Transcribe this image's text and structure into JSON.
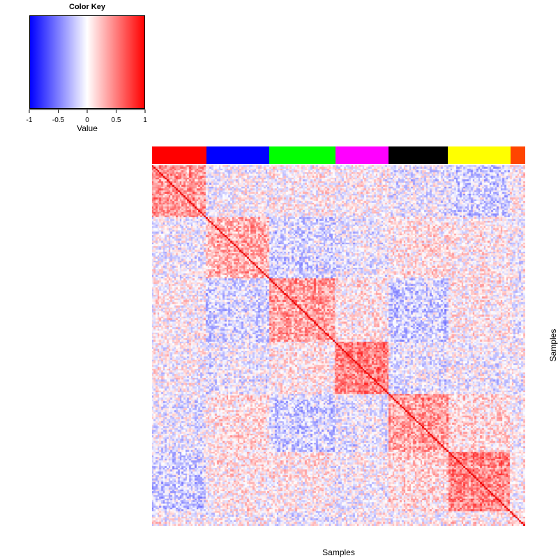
{
  "color_key": {
    "title": "Color Key",
    "xlabel": "Value",
    "ticks": [
      "-1",
      "-0.5",
      "0",
      "0.5",
      "1"
    ],
    "range": [
      -1,
      1
    ],
    "colors": [
      "#0000ff",
      "#ffffff",
      "#ff0000"
    ]
  },
  "chart_data": {
    "type": "heatmap",
    "xlabel": "Samples",
    "ylabel": "Samples",
    "value_range": [
      -1,
      1
    ],
    "diagonal_value": 1,
    "sample_groups": [
      {
        "color": "#ff0000",
        "fraction": 0.146
      },
      {
        "color": "#0000ff",
        "fraction": 0.168
      },
      {
        "color": "#00ff00",
        "fraction": 0.178
      },
      {
        "color": "#ff00ff",
        "fraction": 0.142
      },
      {
        "color": "#000000",
        "fraction": 0.159
      },
      {
        "color": "#ffff00",
        "fraction": 0.168
      },
      {
        "color": "#ff4500",
        "fraction": 0.039
      }
    ],
    "group_mean_correlation": [
      [
        0.55,
        -0.05,
        0.05,
        0.0,
        -0.1,
        -0.25,
        0.05
      ],
      [
        -0.05,
        0.45,
        -0.2,
        -0.1,
        0.15,
        0.1,
        0.0
      ],
      [
        0.05,
        -0.2,
        0.55,
        0.1,
        -0.25,
        0.1,
        -0.05
      ],
      [
        0.0,
        -0.1,
        0.1,
        0.7,
        -0.1,
        -0.05,
        0.0
      ],
      [
        -0.1,
        0.15,
        -0.25,
        -0.1,
        0.55,
        0.2,
        0.05
      ],
      [
        -0.25,
        0.1,
        0.1,
        -0.05,
        0.2,
        0.7,
        0.1
      ],
      [
        0.05,
        0.0,
        -0.05,
        0.0,
        0.05,
        0.1,
        0.3
      ]
    ]
  }
}
